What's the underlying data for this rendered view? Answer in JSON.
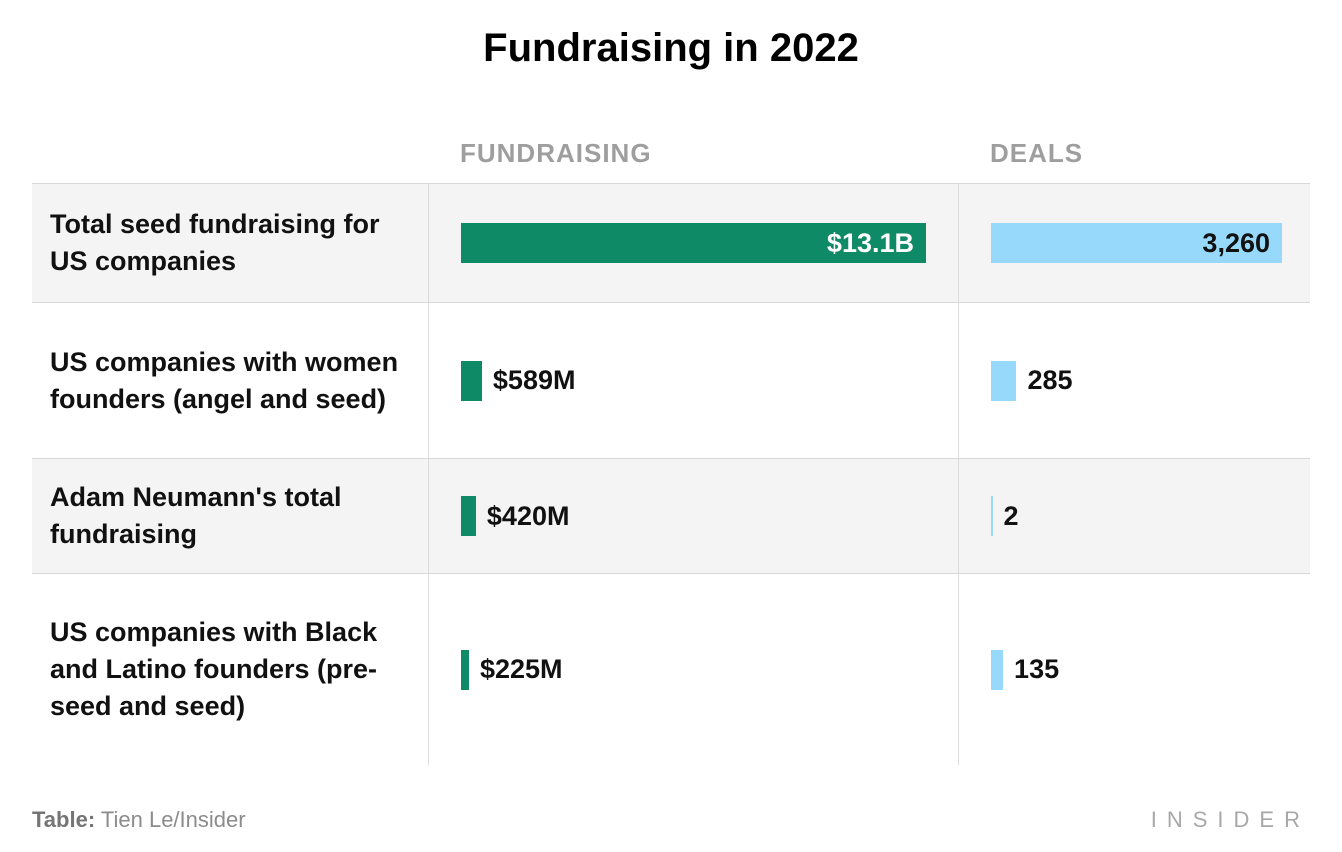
{
  "title": "Fundraising in 2022",
  "header": {
    "fundraising": "FUNDRAISING",
    "deals": "DEALS"
  },
  "footer": {
    "credit_label": "Table:",
    "credit_name": " Tien Le/Insider",
    "brand": "INSIDER"
  },
  "colors": {
    "fundraising_bar": "#0e8a66",
    "deals_bar": "#97d9fb",
    "row_stripe": "#f4f4f4",
    "header_text": "#9e9e9e"
  },
  "chart_data": {
    "type": "table",
    "title": "Fundraising in 2022",
    "columns": [
      "FUNDRAISING",
      "DEALS"
    ],
    "legend_position": "none",
    "scale": {
      "fundraising_max_musd": 13100,
      "deals_max": 3260
    },
    "rows": [
      {
        "label": "Total seed fundraising for US companies",
        "fundraising_musd": 13100,
        "fundraising_display": "$13.1B",
        "deals": 3260,
        "deals_display": "3,260"
      },
      {
        "label": "US companies with women founders (angel and seed)",
        "fundraising_musd": 589,
        "fundraising_display": "$589M",
        "deals": 285,
        "deals_display": "285"
      },
      {
        "label": "Adam Neumann's total fundraising",
        "fundraising_musd": 420,
        "fundraising_display": "$420M",
        "deals": 2,
        "deals_display": "2"
      },
      {
        "label": "US companies with Black and Latino founders (pre-seed and seed)",
        "fundraising_musd": 225,
        "fundraising_display": "$225M",
        "deals": 135,
        "deals_display": "135"
      }
    ]
  }
}
